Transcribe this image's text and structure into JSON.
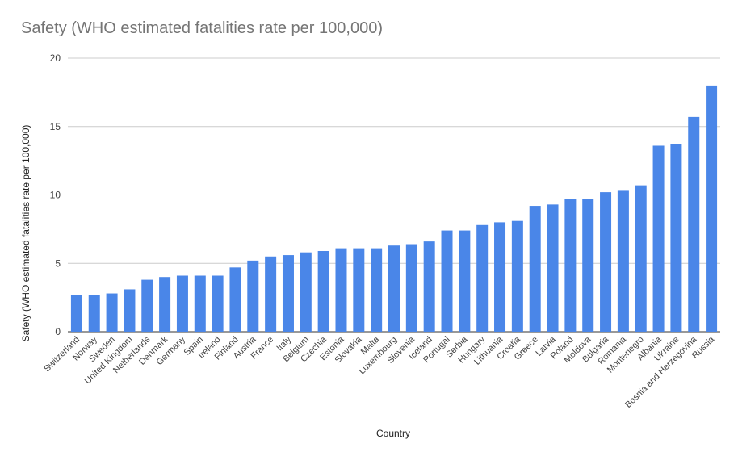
{
  "chart_data": {
    "type": "bar",
    "title": "Safety (WHO estimated fatalities rate per 100,000)",
    "xlabel": "Country",
    "ylabel": "Safety (WHO estimated fatalities rate per 100,000)",
    "ylim": [
      0,
      20
    ],
    "yticks": [
      0,
      5,
      10,
      15,
      20
    ],
    "grid": true,
    "bar_color": "#4a86e8",
    "categories": [
      "Switzerland",
      "Norway",
      "Sweden",
      "United Kingdom",
      "Netherlands",
      "Denmark",
      "Germany",
      "Spain",
      "Ireland",
      "Finland",
      "Austria",
      "France",
      "Italy",
      "Belgium",
      "Czechia",
      "Estonia",
      "Slovakia",
      "Malta",
      "Luxembourg",
      "Slovenia",
      "Iceland",
      "Portugal",
      "Serbia",
      "Hungary",
      "Lithuania",
      "Croatia",
      "Greece",
      "Latvia",
      "Poland",
      "Moldova",
      "Bulgaria",
      "Romania",
      "Montenegro",
      "Albania",
      "Ukraine",
      "Bosnia and Herzegovina",
      "Russia"
    ],
    "values": [
      2.7,
      2.7,
      2.8,
      3.1,
      3.8,
      4.0,
      4.1,
      4.1,
      4.1,
      4.7,
      5.2,
      5.5,
      5.6,
      5.8,
      5.9,
      6.1,
      6.1,
      6.1,
      6.3,
      6.4,
      6.6,
      7.4,
      7.4,
      7.8,
      8.0,
      8.1,
      9.2,
      9.3,
      9.7,
      9.7,
      10.2,
      10.3,
      10.7,
      13.6,
      13.7,
      15.7,
      18.0
    ]
  }
}
